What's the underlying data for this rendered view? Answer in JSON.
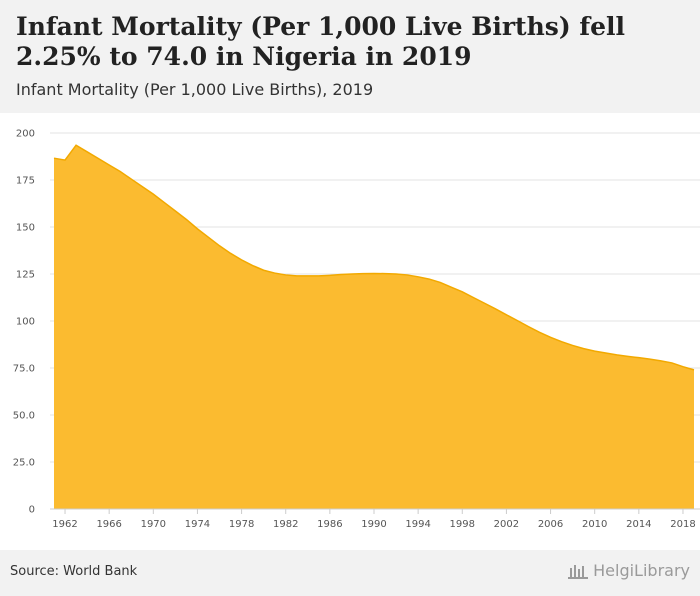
{
  "header": {
    "title": "Infant Mortality (Per 1,000 Live Births) fell 2.25% to 74.0 in Nigeria in 2019",
    "subtitle": "Infant Mortality (Per 1,000 Live Births), 2019"
  },
  "footer": {
    "source": "Source: World Bank",
    "brand": "HelgiLibrary"
  },
  "colors": {
    "fill": "#fbbb30",
    "line": "#f2a900",
    "grid": "#e3e3e3"
  },
  "chart_data": {
    "type": "area",
    "title": "Infant Mortality (Per 1,000 Live Births), 2019",
    "xlabel": "",
    "ylabel": "",
    "xlim": [
      1961,
      2019
    ],
    "ylim": [
      0,
      200
    ],
    "grid": true,
    "legend": "none",
    "y_ticks": [
      "0",
      "25.0",
      "50.0",
      "75.0",
      "100",
      "125",
      "150",
      "175",
      "200"
    ],
    "y_tick_values": [
      0,
      25,
      50,
      75,
      100,
      125,
      150,
      175,
      200
    ],
    "x_ticks": [
      "1962",
      "1966",
      "1970",
      "1974",
      "1978",
      "1982",
      "1986",
      "1990",
      "1994",
      "1998",
      "2002",
      "2006",
      "2010",
      "2014",
      "2018"
    ],
    "x": [
      1961,
      1962,
      1963,
      1964,
      1965,
      1966,
      1967,
      1968,
      1969,
      1970,
      1971,
      1972,
      1973,
      1974,
      1975,
      1976,
      1977,
      1978,
      1979,
      1980,
      1981,
      1982,
      1983,
      1984,
      1985,
      1986,
      1987,
      1988,
      1989,
      1990,
      1991,
      1992,
      1993,
      1994,
      1995,
      1996,
      1997,
      1998,
      1999,
      2000,
      2001,
      2002,
      2003,
      2004,
      2005,
      2006,
      2007,
      2008,
      2009,
      2010,
      2011,
      2012,
      2013,
      2014,
      2015,
      2016,
      2017,
      2018,
      2019
    ],
    "series": [
      {
        "values": [
          186.6,
          185.6,
          193.5,
          190.0,
          186.5,
          183.0,
          179.5,
          175.5,
          171.5,
          167.5,
          163.0,
          158.5,
          154.0,
          149.0,
          144.5,
          140.0,
          136.0,
          132.5,
          129.5,
          127.0,
          125.5,
          124.5,
          124.0,
          124.0,
          124.0,
          124.3,
          124.7,
          125.0,
          125.2,
          125.3,
          125.2,
          125.0,
          124.5,
          123.5,
          122.3,
          120.5,
          118.0,
          115.5,
          112.5,
          109.5,
          106.5,
          103.3,
          100.2,
          97.0,
          94.0,
          91.3,
          89.0,
          87.0,
          85.3,
          84.0,
          83.0,
          82.0,
          81.2,
          80.5,
          79.7,
          78.8,
          77.7,
          75.7,
          74.0
        ]
      }
    ]
  }
}
